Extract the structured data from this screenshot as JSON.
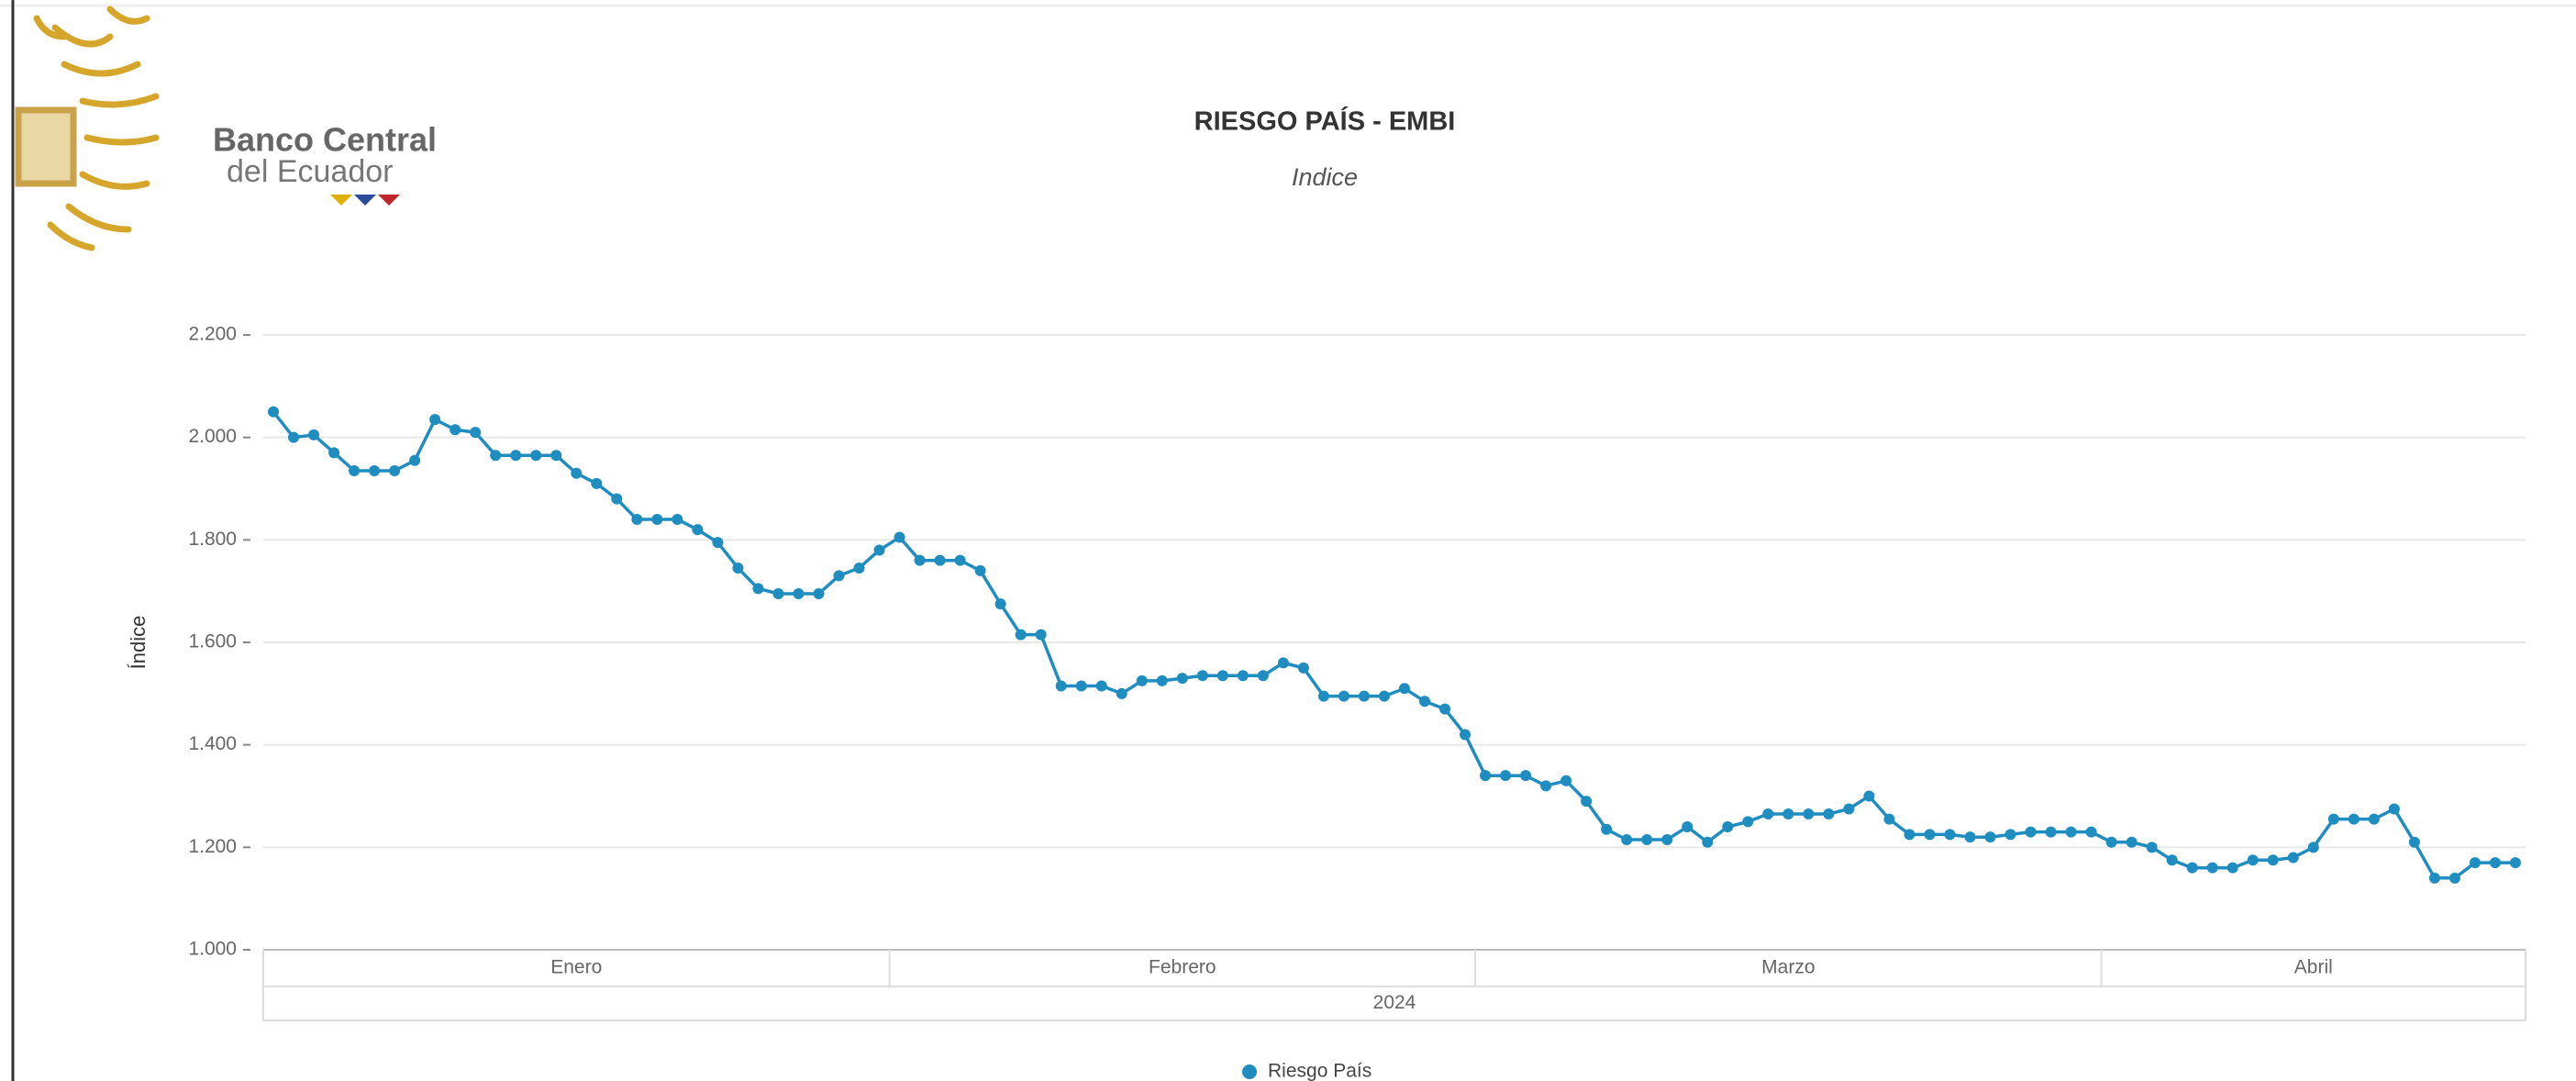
{
  "logo": [
    "Banco Central",
    "del Ecuador"
  ],
  "chart_data": {
    "type": "line",
    "title": "RIESGO PAÍS - EMBI",
    "subtitle": "Indice",
    "ylabel": "Índice",
    "year": "2024",
    "categories": [
      "Enero",
      "Enero",
      "Enero",
      "Enero",
      "Enero",
      "Enero",
      "Enero",
      "Enero",
      "Enero",
      "Enero",
      "Enero",
      "Enero",
      "Enero",
      "Enero",
      "Enero",
      "Enero",
      "Enero",
      "Enero",
      "Enero",
      "Enero",
      "Enero",
      "Enero",
      "Enero",
      "Enero",
      "Enero",
      "Enero",
      "Enero",
      "Enero",
      "Enero",
      "Enero",
      "Enero",
      "Febrero",
      "Febrero",
      "Febrero",
      "Febrero",
      "Febrero",
      "Febrero",
      "Febrero",
      "Febrero",
      "Febrero",
      "Febrero",
      "Febrero",
      "Febrero",
      "Febrero",
      "Febrero",
      "Febrero",
      "Febrero",
      "Febrero",
      "Febrero",
      "Febrero",
      "Febrero",
      "Febrero",
      "Febrero",
      "Febrero",
      "Febrero",
      "Febrero",
      "Febrero",
      "Febrero",
      "Febrero",
      "Febrero",
      "Marzo",
      "Marzo",
      "Marzo",
      "Marzo",
      "Marzo",
      "Marzo",
      "Marzo",
      "Marzo",
      "Marzo",
      "Marzo",
      "Marzo",
      "Marzo",
      "Marzo",
      "Marzo",
      "Marzo",
      "Marzo",
      "Marzo",
      "Marzo",
      "Marzo",
      "Marzo",
      "Marzo",
      "Marzo",
      "Marzo",
      "Marzo",
      "Marzo",
      "Marzo",
      "Marzo",
      "Marzo",
      "Marzo",
      "Marzo",
      "Marzo",
      "Abril",
      "Abril",
      "Abril",
      "Abril",
      "Abril",
      "Abril",
      "Abril",
      "Abril",
      "Abril",
      "Abril",
      "Abril",
      "Abril",
      "Abril",
      "Abril",
      "Abril",
      "Abril",
      "Abril",
      "Abril",
      "Abril",
      "Abril",
      "Abril"
    ],
    "series": [
      {
        "name": "Riesgo País",
        "color": "#1f8dbf",
        "values": [
          2050,
          2000,
          2005,
          1970,
          1935,
          1935,
          1935,
          1955,
          2035,
          2015,
          2010,
          1965,
          1965,
          1965,
          1965,
          1930,
          1910,
          1880,
          1840,
          1840,
          1840,
          1820,
          1795,
          1745,
          1705,
          1695,
          1695,
          1695,
          1730,
          1745,
          1780,
          1805,
          1760,
          1760,
          1760,
          1740,
          1675,
          1615,
          1615,
          1515,
          1515,
          1515,
          1500,
          1525,
          1525,
          1530,
          1535,
          1535,
          1535,
          1535,
          1560,
          1550,
          1495,
          1495,
          1495,
          1495,
          1510,
          1485,
          1470,
          1420,
          1340,
          1340,
          1340,
          1320,
          1330,
          1290,
          1235,
          1215,
          1215,
          1215,
          1240,
          1210,
          1240,
          1250,
          1265,
          1265,
          1265,
          1265,
          1275,
          1300,
          1255,
          1225,
          1225,
          1225,
          1220,
          1220,
          1225,
          1230,
          1230,
          1230,
          1230,
          1210,
          1210,
          1200,
          1175,
          1160,
          1160,
          1160,
          1175,
          1175,
          1180,
          1200,
          1255,
          1255,
          1255,
          1275,
          1210,
          1140,
          1140,
          1170,
          1170,
          1170
        ]
      }
    ],
    "ylim": [
      1000,
      2200
    ],
    "yticks": [
      {
        "value": 1000,
        "label": "1.000"
      },
      {
        "value": 1200,
        "label": "1.200"
      },
      {
        "value": 1400,
        "label": "1.400"
      },
      {
        "value": 1600,
        "label": "1.600"
      },
      {
        "value": 1800,
        "label": "1.800"
      },
      {
        "value": 2000,
        "label": "2.000"
      },
      {
        "value": 2200,
        "label": "2.200"
      }
    ],
    "grid": true
  }
}
